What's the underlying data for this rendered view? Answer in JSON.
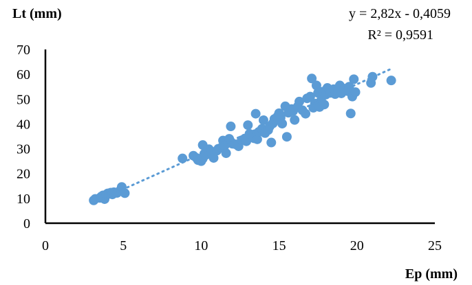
{
  "chart_data": {
    "type": "scatter",
    "ylabel": "Lt (mm)",
    "xlabel": "Ep (mm)",
    "equation": "y = 2,82x - 0,4059",
    "r_squared": "R² = 0,9591",
    "xlim": [
      0,
      25
    ],
    "ylim": [
      0,
      70
    ],
    "x_ticks": [
      "0",
      "5",
      "10",
      "15",
      "20",
      "25"
    ],
    "y_ticks": [
      "0",
      "10",
      "20",
      "30",
      "40",
      "50",
      "60",
      "70"
    ],
    "grid": false,
    "marker_color": "#5B9BD5",
    "trendline": {
      "slope": 2.82,
      "intercept": -0.4059,
      "x_range": [
        3.0,
        22.2
      ]
    },
    "points": [
      [
        3.1,
        9.2
      ],
      [
        3.2,
        9.8
      ],
      [
        3.5,
        10.2
      ],
      [
        3.6,
        10.8
      ],
      [
        3.7,
        11.2
      ],
      [
        3.8,
        9.7
      ],
      [
        3.9,
        11.5
      ],
      [
        4.0,
        12.0
      ],
      [
        4.1,
        11.8
      ],
      [
        4.2,
        12.3
      ],
      [
        4.3,
        11.6
      ],
      [
        4.4,
        12.5
      ],
      [
        4.6,
        12.2
      ],
      [
        4.8,
        13.2
      ],
      [
        4.9,
        14.6
      ],
      [
        5.1,
        12.1
      ],
      [
        8.8,
        26.1
      ],
      [
        9.5,
        27.2
      ],
      [
        9.7,
        26.3
      ],
      [
        9.8,
        25.4
      ],
      [
        10.0,
        25.0
      ],
      [
        10.1,
        26.0
      ],
      [
        10.1,
        31.5
      ],
      [
        10.2,
        28.0
      ],
      [
        10.3,
        27.5
      ],
      [
        10.5,
        29.8
      ],
      [
        10.6,
        28.7
      ],
      [
        10.8,
        26.3
      ],
      [
        11.0,
        29.2
      ],
      [
        11.1,
        30.0
      ],
      [
        11.3,
        30.5
      ],
      [
        11.4,
        33.3
      ],
      [
        11.5,
        31.2
      ],
      [
        11.6,
        28.2
      ],
      [
        11.8,
        34.0
      ],
      [
        11.9,
        39.0
      ],
      [
        12.0,
        32.0
      ],
      [
        12.2,
        31.8
      ],
      [
        12.4,
        31.0
      ],
      [
        12.6,
        33.4
      ],
      [
        12.8,
        34.1
      ],
      [
        12.9,
        33.0
      ],
      [
        13.0,
        39.5
      ],
      [
        13.1,
        36.0
      ],
      [
        13.3,
        35.4
      ],
      [
        13.4,
        34.2
      ],
      [
        13.5,
        44.1
      ],
      [
        13.6,
        33.8
      ],
      [
        13.7,
        36.8
      ],
      [
        13.9,
        38.0
      ],
      [
        14.0,
        41.5
      ],
      [
        14.1,
        36.3
      ],
      [
        14.3,
        37.5
      ],
      [
        14.4,
        39.0
      ],
      [
        14.5,
        32.5
      ],
      [
        14.6,
        40.2
      ],
      [
        14.7,
        42.0
      ],
      [
        14.9,
        43.0
      ],
      [
        15.0,
        44.3
      ],
      [
        15.1,
        42.5
      ],
      [
        15.2,
        40.1
      ],
      [
        15.4,
        47.1
      ],
      [
        15.5,
        34.8
      ],
      [
        15.6,
        44.5
      ],
      [
        15.8,
        46.0
      ],
      [
        15.9,
        45.2
      ],
      [
        16.0,
        41.6
      ],
      [
        16.2,
        47.0
      ],
      [
        16.3,
        49.0
      ],
      [
        16.5,
        45.5
      ],
      [
        16.7,
        44.1
      ],
      [
        16.8,
        50.3
      ],
      [
        17.0,
        51.0
      ],
      [
        17.1,
        58.3
      ],
      [
        17.2,
        46.5
      ],
      [
        17.3,
        48.2
      ],
      [
        17.4,
        55.5
      ],
      [
        17.5,
        52.5
      ],
      [
        17.6,
        46.8
      ],
      [
        17.7,
        49.5
      ],
      [
        17.8,
        53.0
      ],
      [
        17.9,
        47.8
      ],
      [
        18.0,
        51.8
      ],
      [
        18.1,
        54.5
      ],
      [
        18.2,
        53.8
      ],
      [
        18.3,
        52.5
      ],
      [
        18.5,
        54.0
      ],
      [
        18.6,
        52.0
      ],
      [
        18.8,
        53.4
      ],
      [
        18.9,
        55.5
      ],
      [
        19.0,
        52.3
      ],
      [
        19.2,
        54.2
      ],
      [
        19.4,
        53.2
      ],
      [
        19.5,
        55.0
      ],
      [
        19.6,
        44.2
      ],
      [
        19.7,
        51.0
      ],
      [
        19.8,
        58.0
      ],
      [
        19.9,
        52.8
      ],
      [
        20.9,
        56.5
      ],
      [
        21.0,
        59.0
      ],
      [
        22.2,
        57.5
      ]
    ]
  }
}
